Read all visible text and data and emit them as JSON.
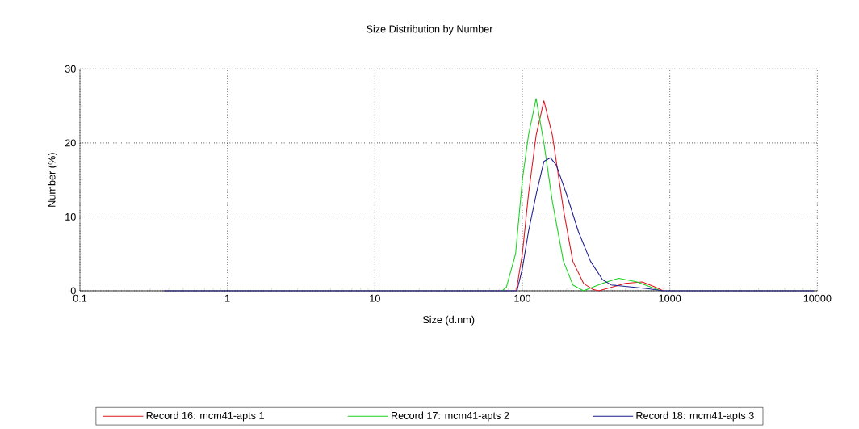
{
  "chart_data": {
    "type": "line",
    "title": "Size Distribution by Number",
    "xlabel": "Size (d.nm)",
    "ylabel": "Number (%)",
    "log": "x",
    "xlim": [
      0.1,
      10000
    ],
    "xticks": [
      0.1,
      1,
      10,
      100,
      1000,
      10000
    ],
    "ylim": [
      0,
      30
    ],
    "yticks": [
      0,
      10,
      20,
      30
    ],
    "grid": true,
    "legend": "bottom",
    "marker": "none",
    "line_style": "solid",
    "series": [
      {
        "name": "Record 16: mcm41-apts 1",
        "color": "#e0141e",
        "x": [
          91,
          100,
          110,
          124,
          140,
          160,
          190,
          220,
          260,
          300,
          330,
          500,
          650,
          800,
          900
        ],
        "values": [
          0,
          5,
          13,
          21,
          25.7,
          21,
          11,
          4,
          1,
          0.2,
          0,
          1,
          1.2,
          0.5,
          0
        ]
      },
      {
        "name": "Record 17: mcm41-apts 2",
        "color": "#19d21e",
        "x": [
          73,
          78,
          90,
          100,
          110,
          124,
          140,
          160,
          190,
          220,
          260,
          350,
          450,
          600,
          870
        ],
        "values": [
          0,
          0.5,
          5,
          15,
          21,
          26,
          20,
          12,
          4,
          0.8,
          0,
          1,
          1.7,
          1.2,
          0
        ]
      },
      {
        "name": "Record 18: mcm41-apts 3",
        "color": "#1e1e8c",
        "x": [
          0.37,
          92,
          100,
          110,
          124,
          140,
          155,
          170,
          200,
          240,
          290,
          350,
          400,
          500,
          700,
          900,
          9500
        ],
        "values": [
          0,
          0,
          3,
          8,
          13,
          17.5,
          18,
          17,
          13,
          8,
          4,
          1.5,
          0.8,
          0.6,
          0.3,
          0,
          0
        ]
      }
    ]
  }
}
